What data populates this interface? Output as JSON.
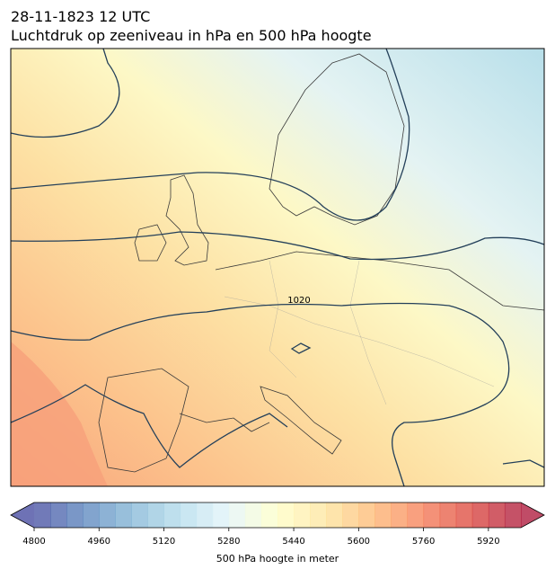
{
  "header": {
    "time": "28-11-1823 12 UTC",
    "title": "Luchtdruk op zeeniveau in hPa en 500 hPa hoogte"
  },
  "map": {
    "contour_label": "1020"
  },
  "colorbar": {
    "label": "500 hPa hoogte in meter",
    "range": [
      4800,
      6000
    ],
    "step": 40,
    "ticks": [
      4800,
      4960,
      5120,
      5280,
      5440,
      5600,
      5760,
      5920
    ],
    "colors": [
      "#313695",
      "#4575b4",
      "#74add1",
      "#abd9e9",
      "#e0f3f8",
      "#ffffbf",
      "#fee090",
      "#fdae61",
      "#f46d43",
      "#d73027",
      "#a50026"
    ],
    "opacity": 0.7
  }
}
